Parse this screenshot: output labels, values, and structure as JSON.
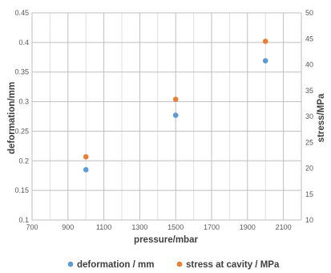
{
  "chart_data": {
    "type": "scatter",
    "xlabel": "pressure/mbar",
    "ylabel": "deformation/mm",
    "y2label": "stress/MPa",
    "xlim": [
      700,
      2200
    ],
    "ylim": [
      0.1,
      0.45
    ],
    "y2lim": [
      10,
      50
    ],
    "xticks": [
      "700",
      "900",
      "1100",
      "1300",
      "1500",
      "1700",
      "1900",
      "2100"
    ],
    "yticks": [
      "0.1",
      "0.15",
      "0.2",
      "0.25",
      "0.3",
      "0.35",
      "0.4",
      "0.45"
    ],
    "y2ticks": [
      "10",
      "15",
      "20",
      "25",
      "30",
      "35",
      "40",
      "45",
      "50"
    ],
    "grid": true,
    "legend_position": "bottom",
    "series": [
      {
        "name": "deformation / mm",
        "axis": "left",
        "color": "#5B9BD5",
        "x": [
          1000,
          1500,
          2000
        ],
        "y": [
          0.185,
          0.277,
          0.369
        ]
      },
      {
        "name": "stress at cavity / MPa",
        "axis": "right",
        "color": "#ED7D31",
        "x": [
          1000,
          1500,
          2000
        ],
        "y": [
          22.2,
          33.3,
          44.5
        ]
      }
    ]
  }
}
